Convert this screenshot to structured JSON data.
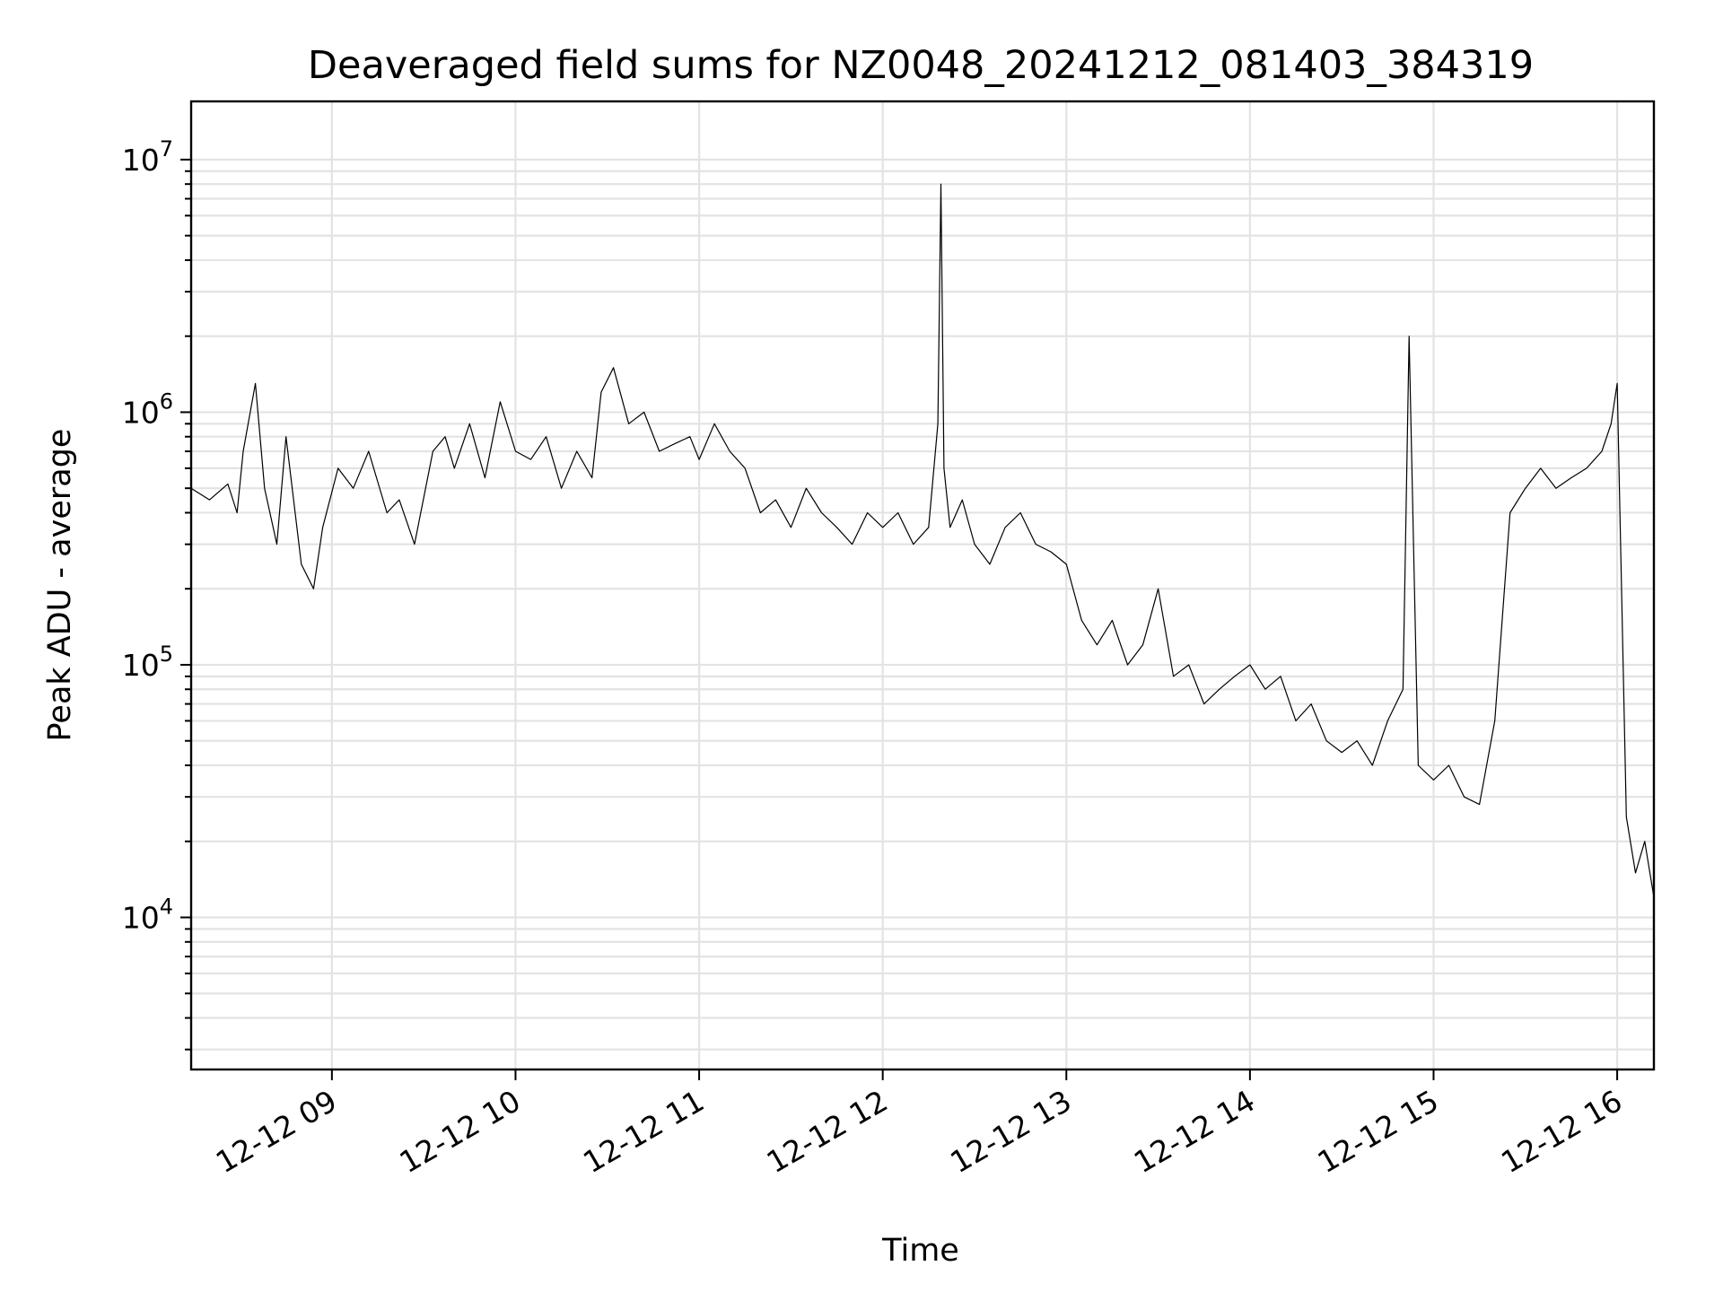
{
  "chart_data": {
    "type": "line",
    "title": "Deaveraged field sums for NZ0048_20241212_081403_384319",
    "xlabel": "Time",
    "ylabel": "Peak ADU - average",
    "yscale": "log",
    "ylim": [
      2500,
      17000000
    ],
    "xlim": [
      "2024-12-12 08:14",
      "2024-12-12 16:12"
    ],
    "grid": true,
    "legend": "none",
    "line_color": "#000000",
    "x_ticks": [
      "2024-12-12 09:00",
      "2024-12-12 10:00",
      "2024-12-12 11:00",
      "2024-12-12 12:00",
      "2024-12-12 13:00",
      "2024-12-12 14:00",
      "2024-12-12 15:00",
      "2024-12-12 16:00"
    ],
    "x_tick_labels": [
      "12-12 09",
      "12-12 10",
      "12-12 11",
      "12-12 12",
      "12-12 13",
      "12-12 14",
      "12-12 15",
      "12-12 16"
    ],
    "y_ticks": [
      {
        "value": 10000,
        "base": "10",
        "exp": "4"
      },
      {
        "value": 100000,
        "base": "10",
        "exp": "5"
      },
      {
        "value": 1000000,
        "base": "10",
        "exp": "6"
      },
      {
        "value": 10000000,
        "base": "10",
        "exp": "7"
      }
    ],
    "series": [
      {
        "x": [
          "2024-12-12 08:14",
          "2024-12-12 08:20",
          "2024-12-12 08:26",
          "2024-12-12 08:29",
          "2024-12-12 08:31",
          "2024-12-12 08:35",
          "2024-12-12 08:38",
          "2024-12-12 08:42",
          "2024-12-12 08:45",
          "2024-12-12 08:50",
          "2024-12-12 08:54",
          "2024-12-12 08:57",
          "2024-12-12 09:02",
          "2024-12-12 09:07",
          "2024-12-12 09:12",
          "2024-12-12 09:18",
          "2024-12-12 09:22",
          "2024-12-12 09:27",
          "2024-12-12 09:33",
          "2024-12-12 09:37",
          "2024-12-12 09:40",
          "2024-12-12 09:45",
          "2024-12-12 09:50",
          "2024-12-12 09:55",
          "2024-12-12 10:00",
          "2024-12-12 10:05",
          "2024-12-12 10:10",
          "2024-12-12 10:15",
          "2024-12-12 10:20",
          "2024-12-12 10:25",
          "2024-12-12 10:28",
          "2024-12-12 10:32",
          "2024-12-12 10:37",
          "2024-12-12 10:42",
          "2024-12-12 10:47",
          "2024-12-12 10:52",
          "2024-12-12 10:57",
          "2024-12-12 11:00",
          "2024-12-12 11:05",
          "2024-12-12 11:10",
          "2024-12-12 11:15",
          "2024-12-12 11:20",
          "2024-12-12 11:25",
          "2024-12-12 11:30",
          "2024-12-12 11:35",
          "2024-12-12 11:40",
          "2024-12-12 11:45",
          "2024-12-12 11:50",
          "2024-12-12 11:55",
          "2024-12-12 12:00",
          "2024-12-12 12:05",
          "2024-12-12 12:10",
          "2024-12-12 12:15",
          "2024-12-12 12:18",
          "2024-12-12 12:19",
          "2024-12-12 12:20",
          "2024-12-12 12:22",
          "2024-12-12 12:26",
          "2024-12-12 12:30",
          "2024-12-12 12:35",
          "2024-12-12 12:40",
          "2024-12-12 12:45",
          "2024-12-12 12:50",
          "2024-12-12 12:55",
          "2024-12-12 13:00",
          "2024-12-12 13:05",
          "2024-12-12 13:10",
          "2024-12-12 13:15",
          "2024-12-12 13:20",
          "2024-12-12 13:25",
          "2024-12-12 13:30",
          "2024-12-12 13:35",
          "2024-12-12 13:40",
          "2024-12-12 13:45",
          "2024-12-12 13:50",
          "2024-12-12 13:55",
          "2024-12-12 14:00",
          "2024-12-12 14:05",
          "2024-12-12 14:10",
          "2024-12-12 14:15",
          "2024-12-12 14:20",
          "2024-12-12 14:25",
          "2024-12-12 14:30",
          "2024-12-12 14:35",
          "2024-12-12 14:40",
          "2024-12-12 14:45",
          "2024-12-12 14:50",
          "2024-12-12 14:52",
          "2024-12-12 14:55",
          "2024-12-12 15:00",
          "2024-12-12 15:05",
          "2024-12-12 15:10",
          "2024-12-12 15:15",
          "2024-12-12 15:20",
          "2024-12-12 15:25",
          "2024-12-12 15:30",
          "2024-12-12 15:35",
          "2024-12-12 15:40",
          "2024-12-12 15:45",
          "2024-12-12 15:50",
          "2024-12-12 15:55",
          "2024-12-12 15:58",
          "2024-12-12 16:00",
          "2024-12-12 16:03",
          "2024-12-12 16:06",
          "2024-12-12 16:09",
          "2024-12-12 16:12"
        ],
        "y": [
          500000,
          450000,
          520000,
          400000,
          700000,
          1300000,
          500000,
          300000,
          800000,
          250000,
          200000,
          350000,
          600000,
          500000,
          700000,
          400000,
          450000,
          300000,
          700000,
          800000,
          600000,
          900000,
          550000,
          1100000,
          700000,
          650000,
          800000,
          500000,
          700000,
          550000,
          1200000,
          1500000,
          900000,
          1000000,
          700000,
          750000,
          800000,
          650000,
          900000,
          700000,
          600000,
          400000,
          450000,
          350000,
          500000,
          400000,
          350000,
          300000,
          400000,
          350000,
          400000,
          300000,
          350000,
          900000,
          8000000,
          600000,
          350000,
          450000,
          300000,
          250000,
          350000,
          400000,
          300000,
          280000,
          250000,
          150000,
          120000,
          150000,
          100000,
          120000,
          200000,
          90000,
          100000,
          70000,
          80000,
          90000,
          100000,
          80000,
          90000,
          60000,
          70000,
          50000,
          45000,
          50000,
          40000,
          60000,
          80000,
          2000000,
          40000,
          35000,
          40000,
          30000,
          28000,
          60000,
          400000,
          500000,
          600000,
          500000,
          550000,
          600000,
          700000,
          900000,
          1300000,
          25000,
          15000,
          20000,
          12000
        ]
      }
    ]
  }
}
